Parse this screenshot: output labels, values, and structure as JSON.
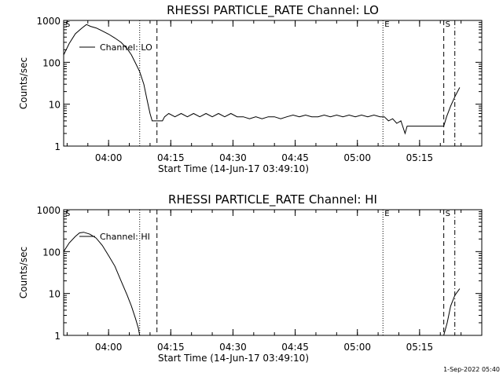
{
  "timestamp": "1-Sep-2022 05:40",
  "chart_data": [
    {
      "type": "line",
      "title": "RHESSI PARTICLE_RATE Channel: LO",
      "xlabel": "Start Time (14-Jun-17 03:49:10)",
      "ylabel": "Counts/sec",
      "y_scale": "log",
      "xlim": [
        "03:49:10",
        "05:30:00"
      ],
      "ylim": [
        1,
        1000
      ],
      "x_ticks": [
        "04:00",
        "04:15",
        "04:30",
        "04:45",
        "05:00",
        "05:15"
      ],
      "y_ticks": [
        "1",
        "10",
        "100",
        "1000"
      ],
      "legend": "Channel: LO",
      "markers": [
        {
          "label": "S",
          "time": "03:49:10",
          "style": "dotted"
        },
        {
          "label": "",
          "time": "04:07:30",
          "style": "dotted"
        },
        {
          "label": "",
          "time": "04:11:40",
          "style": "dashed"
        },
        {
          "label": "E",
          "time": "05:06:10",
          "style": "dotted"
        },
        {
          "label": "S",
          "time": "05:20:50",
          "style": "dashed"
        },
        {
          "label": "",
          "time": "05:23:30",
          "style": "dashdot"
        }
      ],
      "series": [
        {
          "points": [
            [
              "03:49:10",
              150
            ],
            [
              "03:50:30",
              280
            ],
            [
              "03:52:00",
              480
            ],
            [
              "03:53:30",
              650
            ],
            [
              "03:54:40",
              800
            ],
            [
              "03:55:40",
              720
            ],
            [
              "03:57:00",
              660
            ],
            [
              "03:58:30",
              560
            ],
            [
              "04:00:00",
              470
            ],
            [
              "04:01:30",
              380
            ],
            [
              "04:03:00",
              300
            ],
            [
              "04:04:30",
              210
            ],
            [
              "04:05:30",
              150
            ],
            [
              "04:06:30",
              95
            ],
            [
              "04:07:30",
              60
            ],
            [
              "04:08:30",
              30
            ],
            [
              "04:09:20",
              12
            ],
            [
              "04:10:00",
              6
            ],
            [
              "04:10:30",
              4
            ],
            [
              "04:13:00",
              4
            ],
            [
              "04:13:30",
              5
            ],
            [
              "04:14:30",
              6
            ],
            [
              "04:16:00",
              5
            ],
            [
              "04:17:30",
              6
            ],
            [
              "04:19:00",
              5
            ],
            [
              "04:20:30",
              6
            ],
            [
              "04:22:00",
              5
            ],
            [
              "04:23:30",
              6
            ],
            [
              "04:25:00",
              5
            ],
            [
              "04:26:30",
              6
            ],
            [
              "04:28:00",
              5
            ],
            [
              "04:29:30",
              6
            ],
            [
              "04:31:00",
              5
            ],
            [
              "04:32:30",
              5
            ],
            [
              "04:34:00",
              4.5
            ],
            [
              "04:35:30",
              5
            ],
            [
              "04:37:00",
              4.5
            ],
            [
              "04:38:30",
              5
            ],
            [
              "04:40:00",
              5
            ],
            [
              "04:41:30",
              4.5
            ],
            [
              "04:43:00",
              5
            ],
            [
              "04:44:30",
              5.5
            ],
            [
              "04:46:00",
              5
            ],
            [
              "04:47:30",
              5.5
            ],
            [
              "04:49:00",
              5
            ],
            [
              "04:50:30",
              5
            ],
            [
              "04:52:00",
              5.5
            ],
            [
              "04:53:30",
              5
            ],
            [
              "04:55:00",
              5.5
            ],
            [
              "04:56:30",
              5
            ],
            [
              "04:58:00",
              5.5
            ],
            [
              "04:59:30",
              5
            ],
            [
              "05:01:00",
              5.5
            ],
            [
              "05:02:30",
              5
            ],
            [
              "05:04:00",
              5.5
            ],
            [
              "05:05:30",
              5
            ],
            [
              "05:06:30",
              5
            ],
            [
              "05:07:30",
              4
            ],
            [
              "05:08:30",
              4.5
            ],
            [
              "05:09:30",
              3.5
            ],
            [
              "05:10:30",
              4
            ],
            [
              "05:11:30",
              2
            ],
            [
              "05:12:00",
              3
            ],
            [
              "05:14:00",
              3
            ],
            [
              "05:16:00",
              3
            ],
            [
              "05:18:00",
              3
            ],
            [
              "05:20:00",
              3
            ],
            [
              "05:20:50",
              3
            ],
            [
              "05:21:30",
              5
            ],
            [
              "05:22:30",
              9
            ],
            [
              "05:23:30",
              15
            ],
            [
              "05:24:40",
              25
            ]
          ]
        }
      ]
    },
    {
      "type": "line",
      "title": "RHESSI PARTICLE_RATE Channel: HI",
      "xlabel": "Start Time (14-Jun-17 03:49:10)",
      "ylabel": "Counts/sec",
      "y_scale": "log",
      "xlim": [
        "03:49:10",
        "05:30:00"
      ],
      "ylim": [
        1,
        1000
      ],
      "x_ticks": [
        "04:00",
        "04:15",
        "04:30",
        "04:45",
        "05:00",
        "05:15"
      ],
      "y_ticks": [
        "1",
        "10",
        "100",
        "1000"
      ],
      "legend": "Channel: HI",
      "markers": [
        {
          "label": "S",
          "time": "03:49:10",
          "style": "dotted"
        },
        {
          "label": "",
          "time": "04:07:30",
          "style": "dotted"
        },
        {
          "label": "",
          "time": "04:11:40",
          "style": "dashed"
        },
        {
          "label": "E",
          "time": "05:06:10",
          "style": "dotted"
        },
        {
          "label": "S",
          "time": "05:20:50",
          "style": "dashed"
        },
        {
          "label": "",
          "time": "05:23:30",
          "style": "dashdot"
        }
      ],
      "series": [
        {
          "points": [
            [
              "03:49:10",
              100
            ],
            [
              "03:50:30",
              160
            ],
            [
              "03:52:00",
              230
            ],
            [
              "03:53:00",
              280
            ],
            [
              "03:54:00",
              290
            ],
            [
              "03:55:30",
              260
            ],
            [
              "03:57:00",
              210
            ],
            [
              "03:58:30",
              140
            ],
            [
              "04:00:00",
              80
            ],
            [
              "04:01:30",
              45
            ],
            [
              "04:03:00",
              20
            ],
            [
              "04:04:30",
              9
            ],
            [
              "04:05:30",
              5
            ],
            [
              "04:06:30",
              2.5
            ],
            [
              "04:07:10",
              1.5
            ],
            [
              "04:07:30",
              1
            ]
          ]
        },
        {
          "points": [
            [
              "05:20:50",
              1
            ],
            [
              "05:21:40",
              2
            ],
            [
              "05:22:30",
              5
            ],
            [
              "05:23:30",
              9
            ],
            [
              "05:24:40",
              13
            ]
          ]
        }
      ]
    }
  ]
}
